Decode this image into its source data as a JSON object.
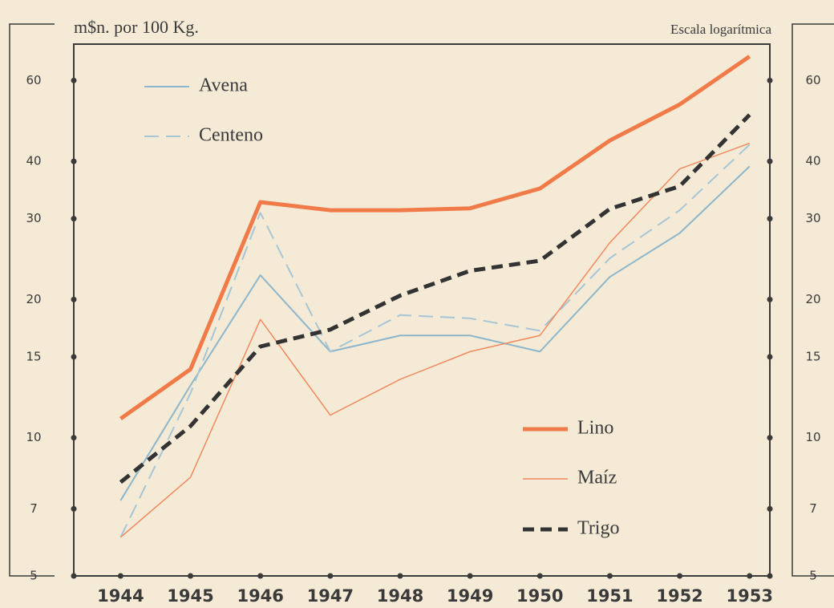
{
  "chart_data": {
    "type": "line",
    "y_label": "m$n. por 100 Kg.",
    "scale_note": "Escala logarítmica",
    "x": [
      1944,
      1945,
      1946,
      1947,
      1948,
      1949,
      1950,
      1951,
      1952,
      1953
    ],
    "xlim": [
      1943.33,
      1953.29
    ],
    "xticks": [
      1944,
      1945,
      1946,
      1947,
      1948,
      1949,
      1950,
      1951,
      1952,
      1953
    ],
    "ylim": [
      5,
      72
    ],
    "yticks": [
      5,
      7,
      10,
      15,
      20,
      30,
      40,
      60
    ],
    "y_log": true,
    "y2lim": [
      5,
      72
    ],
    "y2ticks": [
      5,
      7,
      10,
      15,
      20,
      30,
      40,
      60
    ],
    "series": [
      {
        "name": "Avena",
        "color": "#8db6cb",
        "values": [
          7.3,
          13.0,
          22.6,
          15.4,
          16.7,
          16.7,
          15.4,
          22.4,
          27.9,
          39.0
        ]
      },
      {
        "name": "Centeno",
        "color": "#a6c6d6",
        "values": [
          6.07,
          12.5,
          30.9,
          15.4,
          18.5,
          18.2,
          17.1,
          24.6,
          31.3,
          43.5
        ]
      },
      {
        "name": "Lino",
        "color": "#f07b48",
        "values": [
          11.0,
          14.1,
          32.6,
          31.3,
          31.3,
          31.6,
          34.9,
          44.4,
          53.2,
          67.7
        ]
      },
      {
        "name": "Maíz",
        "color": "#f08a5e",
        "values": [
          6.07,
          8.2,
          18.1,
          11.2,
          13.4,
          15.4,
          16.7,
          26.6,
          38.5,
          43.8
        ]
      },
      {
        "name": "Trigo",
        "color": "#333333",
        "values": [
          8.0,
          10.6,
          15.8,
          17.2,
          20.4,
          23.1,
          24.3,
          31.5,
          35.3,
          50.5
        ]
      }
    ]
  }
}
